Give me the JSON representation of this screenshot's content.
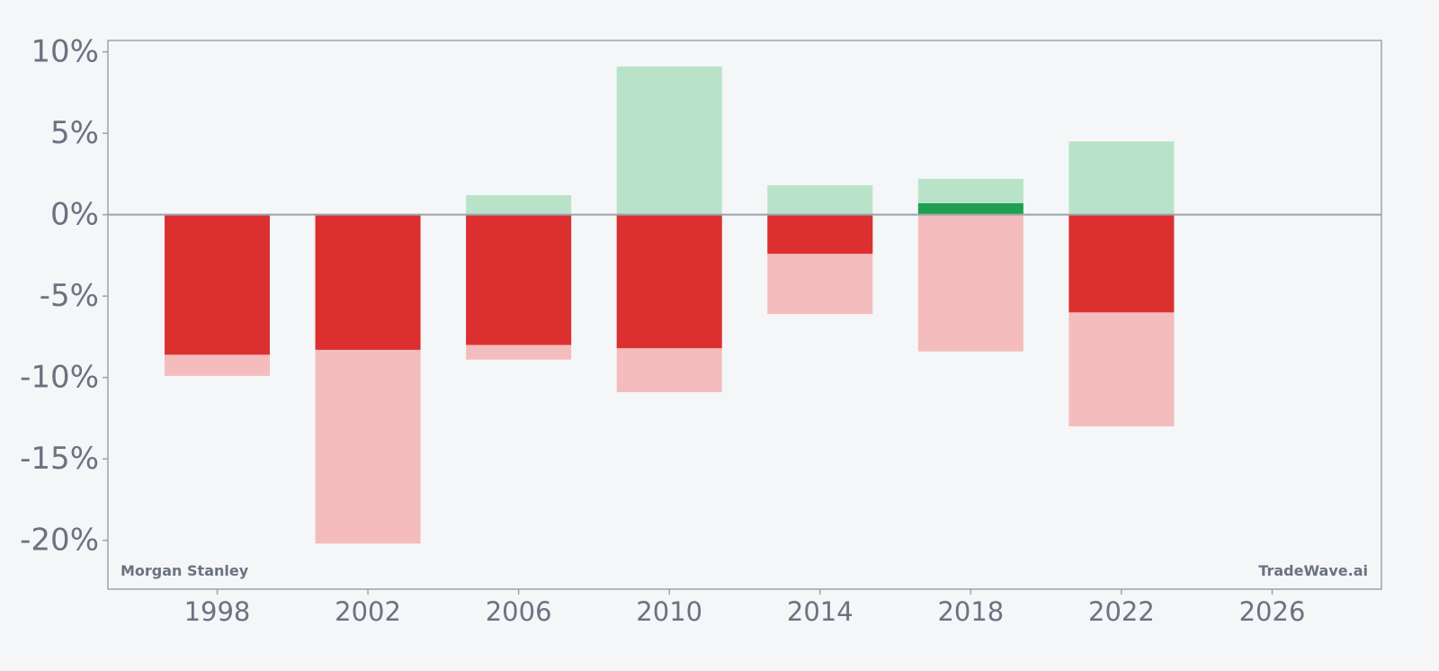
{
  "watermarks": {
    "left": "Morgan Stanley",
    "right": "TradeWave.ai"
  },
  "colors": {
    "background": "#f4f6f8",
    "axis": "#9ca3af",
    "text": "#6b7280",
    "neg_close": "#dc3030",
    "neg_range": "#f4bcbc",
    "pos_close": "#1fa050",
    "pos_range": "#b9e3c9"
  },
  "chart_data": {
    "type": "bar",
    "title": "",
    "xlabel": "",
    "ylabel": "",
    "xlim": [
      1995.1,
      2028.9
    ],
    "ylim": [
      -23,
      10.7
    ],
    "x_ticks": [
      1998,
      2002,
      2006,
      2010,
      2014,
      2018,
      2022,
      2026
    ],
    "x_tick_labels": [
      "1998",
      "2002",
      "2006",
      "2010",
      "2014",
      "2018",
      "2022",
      "2026"
    ],
    "y_ticks": [
      10,
      5,
      0,
      -5,
      -10,
      -15,
      -20
    ],
    "y_tick_labels": [
      "10%",
      "5%",
      "0%",
      "-5%",
      "-10%",
      "-15%",
      "-20%"
    ],
    "grid": false,
    "series": [
      {
        "name": "",
        "x": [
          1998,
          2002,
          2006,
          2010,
          2014,
          2018,
          2022
        ],
        "values": [
          -8.6,
          -8.3,
          -8.0,
          -8.2,
          -2.4,
          0.7,
          -6.0
        ]
      },
      {
        "name": "",
        "x": [
          1998,
          2002,
          2006,
          2010,
          2014,
          2018,
          2022
        ],
        "values": [
          0.0,
          0.0,
          1.2,
          9.1,
          1.8,
          2.2,
          4.5
        ]
      },
      {
        "name": "",
        "x": [
          1998,
          2002,
          2006,
          2010,
          2014,
          2018,
          2022
        ],
        "values": [
          -9.9,
          -20.2,
          -8.9,
          -10.9,
          -6.1,
          -8.4,
          -13.0
        ]
      }
    ]
  }
}
